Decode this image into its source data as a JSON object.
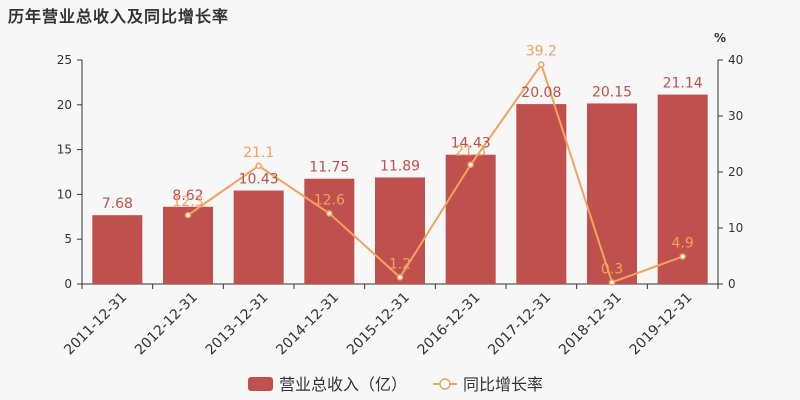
{
  "chart_data": {
    "type": "bar",
    "title": "历年营业总收入及同比增长率",
    "categories": [
      "2011-12-31",
      "2012-12-31",
      "2013-12-31",
      "2014-12-31",
      "2015-12-31",
      "2016-12-31",
      "2017-12-31",
      "2018-12-31",
      "2019-12-31"
    ],
    "series": [
      {
        "name": "营业总收入（亿）",
        "type": "bar",
        "axis": "left",
        "color": "#c0504d",
        "label_color": "#c0504d",
        "values": [
          7.68,
          8.62,
          10.43,
          11.75,
          11.89,
          14.43,
          20.08,
          20.15,
          21.14
        ],
        "labels": [
          "7.68",
          "8.62",
          "10.43",
          "11.75",
          "11.89",
          "14.43",
          "20.08",
          "20.15",
          "21.14"
        ]
      },
      {
        "name": "同比增长率",
        "type": "line",
        "axis": "right",
        "color": "#f2a35e",
        "label_color": "#f2a35e",
        "values": [
          null,
          12.3,
          21.1,
          12.6,
          1.2,
          21.3,
          39.2,
          0.3,
          4.9
        ],
        "labels": [
          "",
          "12.3",
          "21.1",
          "12.6",
          "1.2",
          "21.3",
          "39.2",
          "0.3",
          "4.9"
        ]
      }
    ],
    "y_left": {
      "min": 0,
      "max": 25,
      "ticks": [
        "0",
        "5",
        "10",
        "15",
        "20",
        "25"
      ]
    },
    "y_right": {
      "min": 0,
      "max": 40,
      "ticks": [
        "0",
        "10",
        "20",
        "30",
        "40"
      ],
      "unit": "%"
    },
    "grid": false,
    "legend_position": "bottom-center"
  }
}
